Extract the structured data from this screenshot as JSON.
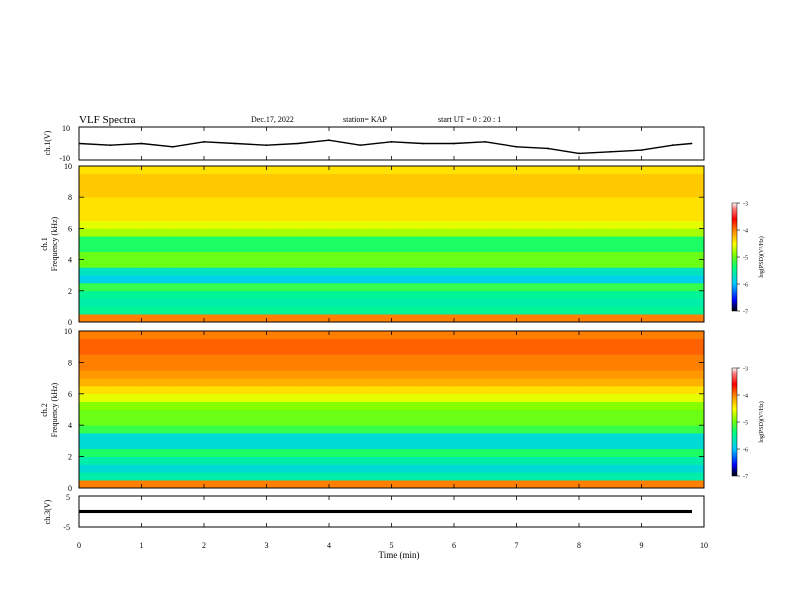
{
  "header": {
    "title": "VLF Spectra",
    "date": "Dec.17, 2022",
    "station": "station= KAP",
    "start_ut": "start  UT =   0  : 20 : 1"
  },
  "panels": {
    "ch1_wave": {
      "ylabel": "ch.1(V)",
      "yticks": [
        "10",
        "-10"
      ]
    },
    "ch1_spec": {
      "ylabel_top": "ch.1",
      "ylabel_bottom": "Frequency  (kHz)",
      "yticks": [
        "0",
        "2",
        "4",
        "6",
        "8",
        "10"
      ]
    },
    "ch2_spec": {
      "ylabel_top": "ch.2",
      "ylabel_bottom": "Frequency  (kHz)",
      "yticks": [
        "0",
        "2",
        "4",
        "6",
        "8",
        "10"
      ]
    },
    "ch3_wave": {
      "ylabel": "ch.3(V)",
      "yticks": [
        "5",
        "-5"
      ]
    }
  },
  "xaxis": {
    "label": "Time  (min)",
    "ticks": [
      "0",
      "1",
      "2",
      "3",
      "4",
      "5",
      "6",
      "7",
      "8",
      "9",
      "10"
    ]
  },
  "colorbar": {
    "label": "log(PSD)(V²/Hz)",
    "ticks": [
      "-3",
      "-4",
      "-5",
      "-6",
      "-7"
    ]
  },
  "colors": {
    "colormap": [
      "#000000",
      "#0000ff",
      "#00c8ff",
      "#00ff80",
      "#80ff00",
      "#ffff00",
      "#ff8000",
      "#ff0000",
      "#ff8080",
      "#ffffff"
    ]
  },
  "chart_data": [
    {
      "type": "line",
      "name": "ch1_waveform",
      "ylabel": "ch.1(V)",
      "xlabel": "Time  (min)",
      "xlim": [
        0,
        10
      ],
      "ylim": [
        -10,
        10
      ],
      "x": [
        0,
        0.5,
        1,
        1.5,
        2,
        2.5,
        3,
        3.5,
        4,
        4.5,
        5,
        5.5,
        6,
        6.5,
        7,
        7.5,
        8,
        8.5,
        9,
        9.5,
        9.8
      ],
      "y": [
        0,
        -1,
        0,
        -2,
        1,
        0,
        -1,
        0,
        2,
        -1,
        1,
        0,
        0,
        1,
        -2,
        -3,
        -6,
        -5,
        -4,
        -1,
        0
      ]
    },
    {
      "type": "heatmap",
      "name": "ch1_spectrogram",
      "ylabel": "Frequency  (kHz)",
      "xlim": [
        0,
        10
      ],
      "ylim": [
        0,
        10
      ],
      "x_bins_min": [
        0,
        0.5,
        1,
        1.5,
        2,
        2.5,
        3,
        3.5,
        4,
        4.5,
        5,
        5.5,
        6,
        6.5,
        7,
        7.5,
        8,
        8.5,
        9,
        9.5
      ],
      "y_bins_khz": [
        0.25,
        0.75,
        1.25,
        1.75,
        2.25,
        2.75,
        3.25,
        3.75,
        4.25,
        4.75,
        5.25,
        5.75,
        6.25,
        6.75,
        7.25,
        7.75,
        8.25,
        8.75,
        9.25,
        9.75
      ],
      "log_psd_profile_by_freq": [
        -4.0,
        -5.5,
        -5.6,
        -5.5,
        -5.2,
        -5.9,
        -5.7,
        -5.0,
        -5.0,
        -5.3,
        -5.3,
        -4.8,
        -4.6,
        -4.4,
        -4.4,
        -4.4,
        -4.3,
        -4.3,
        -4.3,
        -4.4
      ],
      "clim": [
        -7,
        -3
      ]
    },
    {
      "type": "heatmap",
      "name": "ch2_spectrogram",
      "ylabel": "Frequency  (kHz)",
      "xlim": [
        0,
        10
      ],
      "ylim": [
        0,
        10
      ],
      "x_bins_min": [
        0,
        0.5,
        1,
        1.5,
        2,
        2.5,
        3,
        3.5,
        4,
        4.5,
        5,
        5.5,
        6,
        6.5,
        7,
        7.5,
        8,
        8.5,
        9,
        9.5
      ],
      "y_bins_khz": [
        0.25,
        0.75,
        1.25,
        1.75,
        2.25,
        2.75,
        3.25,
        3.75,
        4.25,
        4.75,
        5.25,
        5.75,
        6.25,
        6.75,
        7.25,
        7.75,
        8.25,
        8.75,
        9.25,
        9.75
      ],
      "log_psd_profile_by_freq": [
        -4.0,
        -5.6,
        -5.8,
        -5.6,
        -5.3,
        -5.8,
        -5.8,
        -5.2,
        -5.0,
        -5.0,
        -4.9,
        -4.6,
        -4.4,
        -4.2,
        -4.1,
        -4.0,
        -4.0,
        -3.9,
        -3.9,
        -4.0
      ],
      "clim": [
        -7,
        -3
      ]
    },
    {
      "type": "line",
      "name": "ch3_waveform",
      "ylabel": "ch.3(V)",
      "xlim": [
        0,
        10
      ],
      "ylim": [
        -5,
        5
      ],
      "x": [
        0,
        10
      ],
      "y": [
        0,
        0
      ],
      "band_halfwidth_v": 0.5
    }
  ]
}
